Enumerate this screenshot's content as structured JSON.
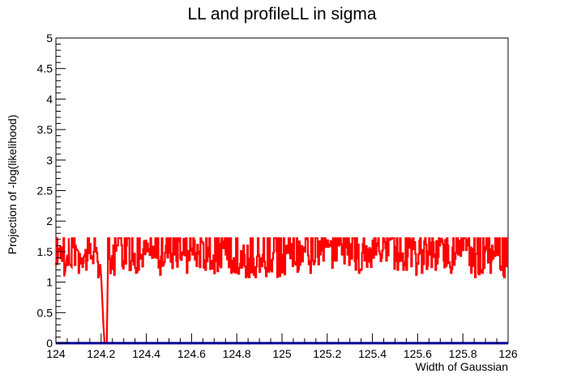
{
  "chart_data": {
    "type": "line",
    "title": "LL and profileLL in sigma",
    "xlabel": "Width of Gaussian",
    "ylabel": "Projection of -log(likelihood)",
    "xlim": [
      124,
      126
    ],
    "ylim": [
      0,
      5
    ],
    "x_ticks": [
      "124",
      "124.2",
      "124.4",
      "124.6",
      "124.8",
      "125",
      "125.2",
      "125.4",
      "125.6",
      "125.8",
      "126"
    ],
    "y_ticks": [
      "0",
      "0.5",
      "1",
      "1.5",
      "2",
      "2.5",
      "3",
      "3.5",
      "4",
      "4.5",
      "5"
    ],
    "grid": false,
    "legend": "none",
    "series": [
      {
        "color": "#ff0000",
        "style": "noisy-step",
        "upper": 1.72,
        "levels": [
          1.12,
          1.15,
          1.2,
          1.28,
          1.35,
          1.45,
          1.5,
          1.6,
          1.72
        ],
        "x": [
          124.0,
          124.01,
          124.02,
          124.03,
          124.04,
          124.05,
          124.06,
          124.07,
          124.08,
          124.09,
          124.1,
          124.12,
          124.14,
          124.16,
          124.18,
          124.2,
          124.205,
          124.21,
          124.215,
          124.22,
          124.225,
          124.23,
          124.25,
          124.3,
          124.35,
          124.4,
          124.45,
          124.5,
          124.55,
          124.6,
          124.65,
          124.7,
          124.75,
          124.8,
          124.85,
          124.9,
          124.95,
          125.0,
          125.05,
          125.1,
          125.15,
          125.2,
          125.25,
          125.3,
          125.35,
          125.4,
          125.45,
          125.5,
          125.55,
          125.6,
          125.65,
          125.7,
          125.75,
          125.8,
          125.85,
          125.9,
          125.95,
          126.0
        ],
        "y": [
          1.28,
          1.5,
          1.6,
          1.38,
          1.15,
          1.45,
          1.3,
          1.25,
          1.5,
          1.55,
          1.5,
          1.45,
          1.35,
          1.45,
          1.3,
          1.1,
          0.72,
          0.3,
          0.0,
          0.0,
          0.0,
          1.3,
          1.4,
          1.45,
          1.35,
          1.5,
          1.4,
          1.45,
          1.5,
          1.45,
          1.45,
          1.35,
          1.45,
          1.35,
          1.25,
          1.3,
          1.3,
          1.35,
          1.4,
          1.45,
          1.5,
          1.5,
          1.45,
          1.5,
          1.4,
          1.5,
          1.5,
          1.45,
          1.45,
          1.45,
          1.45,
          1.5,
          1.45,
          1.72,
          1.3,
          1.35,
          1.3,
          1.2
        ]
      },
      {
        "color": "#000099",
        "x": [
          124,
          126
        ],
        "y": [
          0,
          0
        ]
      }
    ]
  }
}
